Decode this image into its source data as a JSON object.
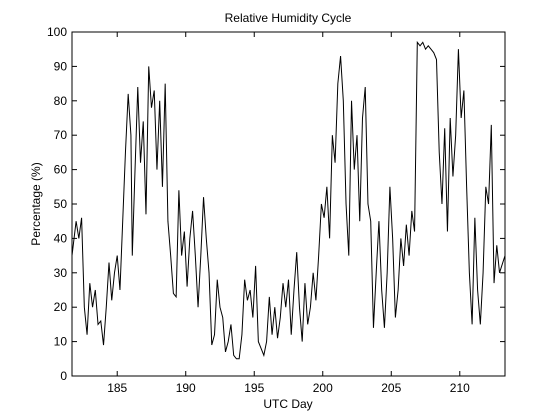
{
  "chart_data": {
    "type": "line",
    "title": "Relative Humidity Cycle",
    "xlabel": "UTC Day",
    "ylabel": "Percentage (%)",
    "x": [
      181.7,
      182.0,
      182.2,
      182.4,
      182.6,
      182.8,
      183.0,
      183.2,
      183.4,
      183.6,
      183.8,
      184.0,
      184.2,
      184.4,
      184.6,
      184.8,
      185.0,
      185.2,
      185.4,
      185.6,
      185.8,
      186.0,
      186.1,
      186.3,
      186.5,
      186.7,
      186.9,
      187.1,
      187.3,
      187.5,
      187.7,
      187.9,
      188.1,
      188.3,
      188.5,
      188.7,
      188.9,
      189.1,
      189.3,
      189.5,
      189.7,
      189.9,
      190.1,
      190.3,
      190.5,
      190.7,
      190.9,
      191.1,
      191.3,
      191.5,
      191.7,
      191.9,
      192.1,
      192.3,
      192.5,
      192.7,
      192.9,
      193.1,
      193.3,
      193.5,
      193.7,
      193.9,
      194.1,
      194.3,
      194.5,
      194.7,
      194.9,
      195.1,
      195.3,
      195.5,
      195.7,
      195.9,
      196.1,
      196.3,
      196.5,
      196.7,
      196.9,
      197.1,
      197.3,
      197.5,
      197.7,
      197.9,
      198.1,
      198.3,
      198.5,
      198.7,
      198.9,
      199.1,
      199.3,
      199.5,
      199.7,
      199.9,
      200.1,
      200.3,
      200.5,
      200.7,
      200.9,
      201.1,
      201.3,
      201.5,
      201.7,
      201.9,
      202.1,
      202.3,
      202.5,
      202.7,
      202.9,
      203.1,
      203.3,
      203.5,
      203.7,
      203.9,
      204.1,
      204.3,
      204.5,
      204.7,
      204.9,
      205.1,
      205.3,
      205.5,
      205.7,
      205.9,
      206.1,
      206.3,
      206.5,
      206.7,
      206.9,
      207.1,
      207.3,
      207.5,
      207.7,
      207.9,
      208.1,
      208.3,
      208.5,
      208.7,
      208.9,
      209.1,
      209.3,
      209.5,
      209.7,
      209.9,
      210.1,
      210.3,
      210.5,
      210.7,
      210.9,
      211.1,
      211.3,
      211.5,
      211.7,
      211.9,
      212.1,
      212.3,
      212.5,
      212.7,
      212.9,
      213.3
    ],
    "series": [
      {
        "name": "Relative Humidity",
        "color": "#000000",
        "values": [
          35,
          45,
          40,
          46,
          20,
          12,
          27,
          20,
          25,
          15,
          16,
          9,
          20,
          33,
          22,
          30,
          35,
          25,
          45,
          65,
          82,
          70,
          35,
          60,
          84,
          62,
          74,
          47,
          90,
          78,
          83,
          60,
          80,
          55,
          85,
          45,
          35,
          24,
          23,
          54,
          35,
          42,
          26,
          40,
          48,
          35,
          20,
          35,
          52,
          40,
          30,
          9,
          12,
          28,
          20,
          17,
          7,
          10,
          15,
          6,
          5,
          5,
          12,
          28,
          22,
          25,
          17,
          32,
          10,
          8,
          6,
          10,
          23,
          12,
          20,
          11,
          17,
          27,
          20,
          28,
          12,
          25,
          36,
          20,
          10,
          27,
          15,
          20,
          30,
          22,
          35,
          50,
          46,
          55,
          40,
          70,
          62,
          85,
          93,
          80,
          50,
          35,
          80,
          60,
          70,
          45,
          75,
          84,
          50,
          45,
          14,
          30,
          45,
          25,
          14,
          30,
          55,
          40,
          17,
          25,
          40,
          32,
          44,
          35,
          48,
          42,
          97,
          96,
          97,
          95,
          96,
          95,
          94,
          92,
          65,
          50,
          72,
          42,
          75,
          58,
          70,
          95,
          75,
          83,
          55,
          30,
          15,
          46,
          25,
          15,
          30,
          55,
          50,
          73,
          27,
          38,
          30,
          35
        ]
      }
    ],
    "xlim": [
      181.7,
      213.3
    ],
    "xticks": [
      185,
      190,
      195,
      200,
      205,
      210
    ],
    "ylim": [
      0,
      100
    ],
    "yticks": [
      0,
      10,
      20,
      30,
      40,
      50,
      60,
      70,
      80,
      90,
      100
    ]
  }
}
